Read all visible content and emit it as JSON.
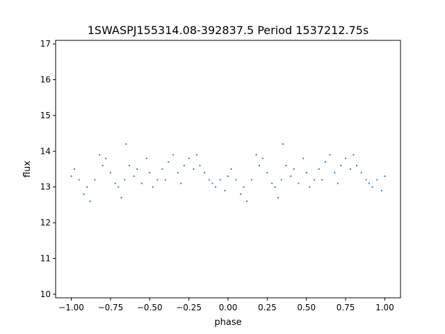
{
  "chart_data": {
    "type": "scatter",
    "title": "1SWASPJ155314.08-392837.5 Period 1537212.75s",
    "xlabel": "phase",
    "ylabel": "flux",
    "xlim": [
      -1.1,
      1.1
    ],
    "ylim": [
      9.9,
      17.1
    ],
    "xticks": [
      -1.0,
      -0.75,
      -0.5,
      -0.25,
      0.0,
      0.25,
      0.5,
      0.75,
      1.0
    ],
    "xtick_labels": [
      "−1.00",
      "−0.75",
      "−0.50",
      "−0.25",
      "0.00",
      "0.25",
      "0.50",
      "0.75",
      "1.00"
    ],
    "yticks": [
      10,
      11,
      12,
      13,
      14,
      15,
      16,
      17
    ],
    "ytick_labels": [
      "10",
      "11",
      "12",
      "13",
      "14",
      "15",
      "16",
      "17"
    ],
    "grid": false,
    "legend": "none",
    "marker_color": "#1f77b4",
    "series": [
      {
        "x": [
          -1.0,
          -0.98,
          -0.95,
          -0.92,
          -0.9,
          -0.88,
          -0.85,
          -0.82,
          -0.8,
          -0.78,
          -0.75,
          -0.72,
          -0.7,
          -0.68,
          -0.66,
          -0.65,
          -0.63,
          -0.6,
          -0.58,
          -0.55,
          -0.52,
          -0.5,
          -0.48,
          -0.45,
          -0.42,
          -0.4,
          -0.38,
          -0.35,
          -0.32,
          -0.3,
          -0.28,
          -0.25,
          -0.22,
          -0.2,
          -0.18,
          -0.15,
          -0.12,
          -0.1,
          -0.08,
          -0.05,
          -0.02,
          0.0,
          0.02,
          0.05,
          0.08,
          0.1,
          0.12,
          0.15,
          0.18,
          0.2,
          0.22,
          0.25,
          0.28,
          0.3,
          0.32,
          0.34,
          0.35,
          0.37,
          0.4,
          0.42,
          0.45,
          0.48,
          0.5,
          0.52,
          0.55,
          0.58,
          0.6,
          0.62,
          0.65,
          0.68,
          0.7,
          0.72,
          0.75,
          0.78,
          0.8,
          0.82,
          0.85,
          0.88,
          0.9,
          0.92,
          0.95,
          0.98,
          1.0
        ],
        "y": [
          13.3,
          13.5,
          13.2,
          12.8,
          13.0,
          12.6,
          13.2,
          13.9,
          13.6,
          13.8,
          13.4,
          13.1,
          13.0,
          12.7,
          13.2,
          14.2,
          13.6,
          13.3,
          13.5,
          13.1,
          13.8,
          13.4,
          13.0,
          13.2,
          13.5,
          13.2,
          13.7,
          13.9,
          13.4,
          13.1,
          13.6,
          13.8,
          13.5,
          13.9,
          13.6,
          13.4,
          13.2,
          13.1,
          13.0,
          13.2,
          12.9,
          13.3,
          13.5,
          13.2,
          12.8,
          13.0,
          12.6,
          13.2,
          13.9,
          13.6,
          13.8,
          13.4,
          13.1,
          13.0,
          12.7,
          13.2,
          14.2,
          13.6,
          13.3,
          13.5,
          13.1,
          13.8,
          13.4,
          13.0,
          13.2,
          13.5,
          13.2,
          13.7,
          13.9,
          13.4,
          13.1,
          13.6,
          13.8,
          13.5,
          13.9,
          13.6,
          13.4,
          13.2,
          13.1,
          13.0,
          13.2,
          12.9,
          13.3
        ]
      }
    ]
  }
}
